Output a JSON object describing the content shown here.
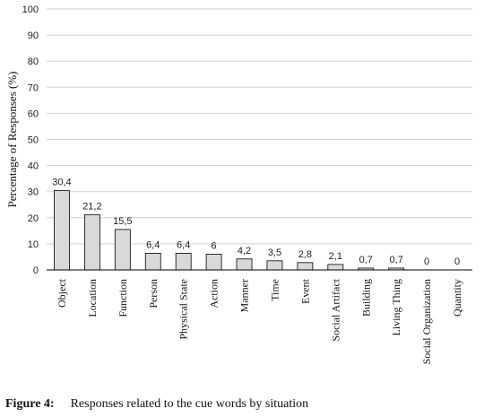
{
  "chart_data": {
    "type": "bar",
    "categories": [
      "Object",
      "Location",
      "Function",
      "Person",
      "Physical State",
      "Action",
      "Manner",
      "Time",
      "Event",
      "Social Artifact",
      "Building",
      "Living Thing",
      "Social Organization",
      "Quantity"
    ],
    "values": [
      30.4,
      21.2,
      15.5,
      6.4,
      6.4,
      6,
      4.2,
      3.5,
      2.8,
      2.1,
      0.7,
      0.7,
      0,
      0
    ],
    "data_labels": [
      "30,4",
      "21,2",
      "15,5",
      "6,4",
      "6,4",
      "6",
      "4,2",
      "3,5",
      "2,8",
      "2,1",
      "0,7",
      "0,7",
      "0",
      "0"
    ],
    "ylabel": "Percentage of Responses (%)",
    "ylim": [
      0,
      100
    ],
    "yticks": [
      0,
      10,
      20,
      30,
      40,
      50,
      60,
      70,
      80,
      90,
      100
    ],
    "grid": true,
    "bar_color": "#d9d9d9",
    "grid_color": "#d0d0d0"
  },
  "caption": {
    "figure_label": "Figure 4:",
    "text": "Responses related to the cue words by situation"
  }
}
